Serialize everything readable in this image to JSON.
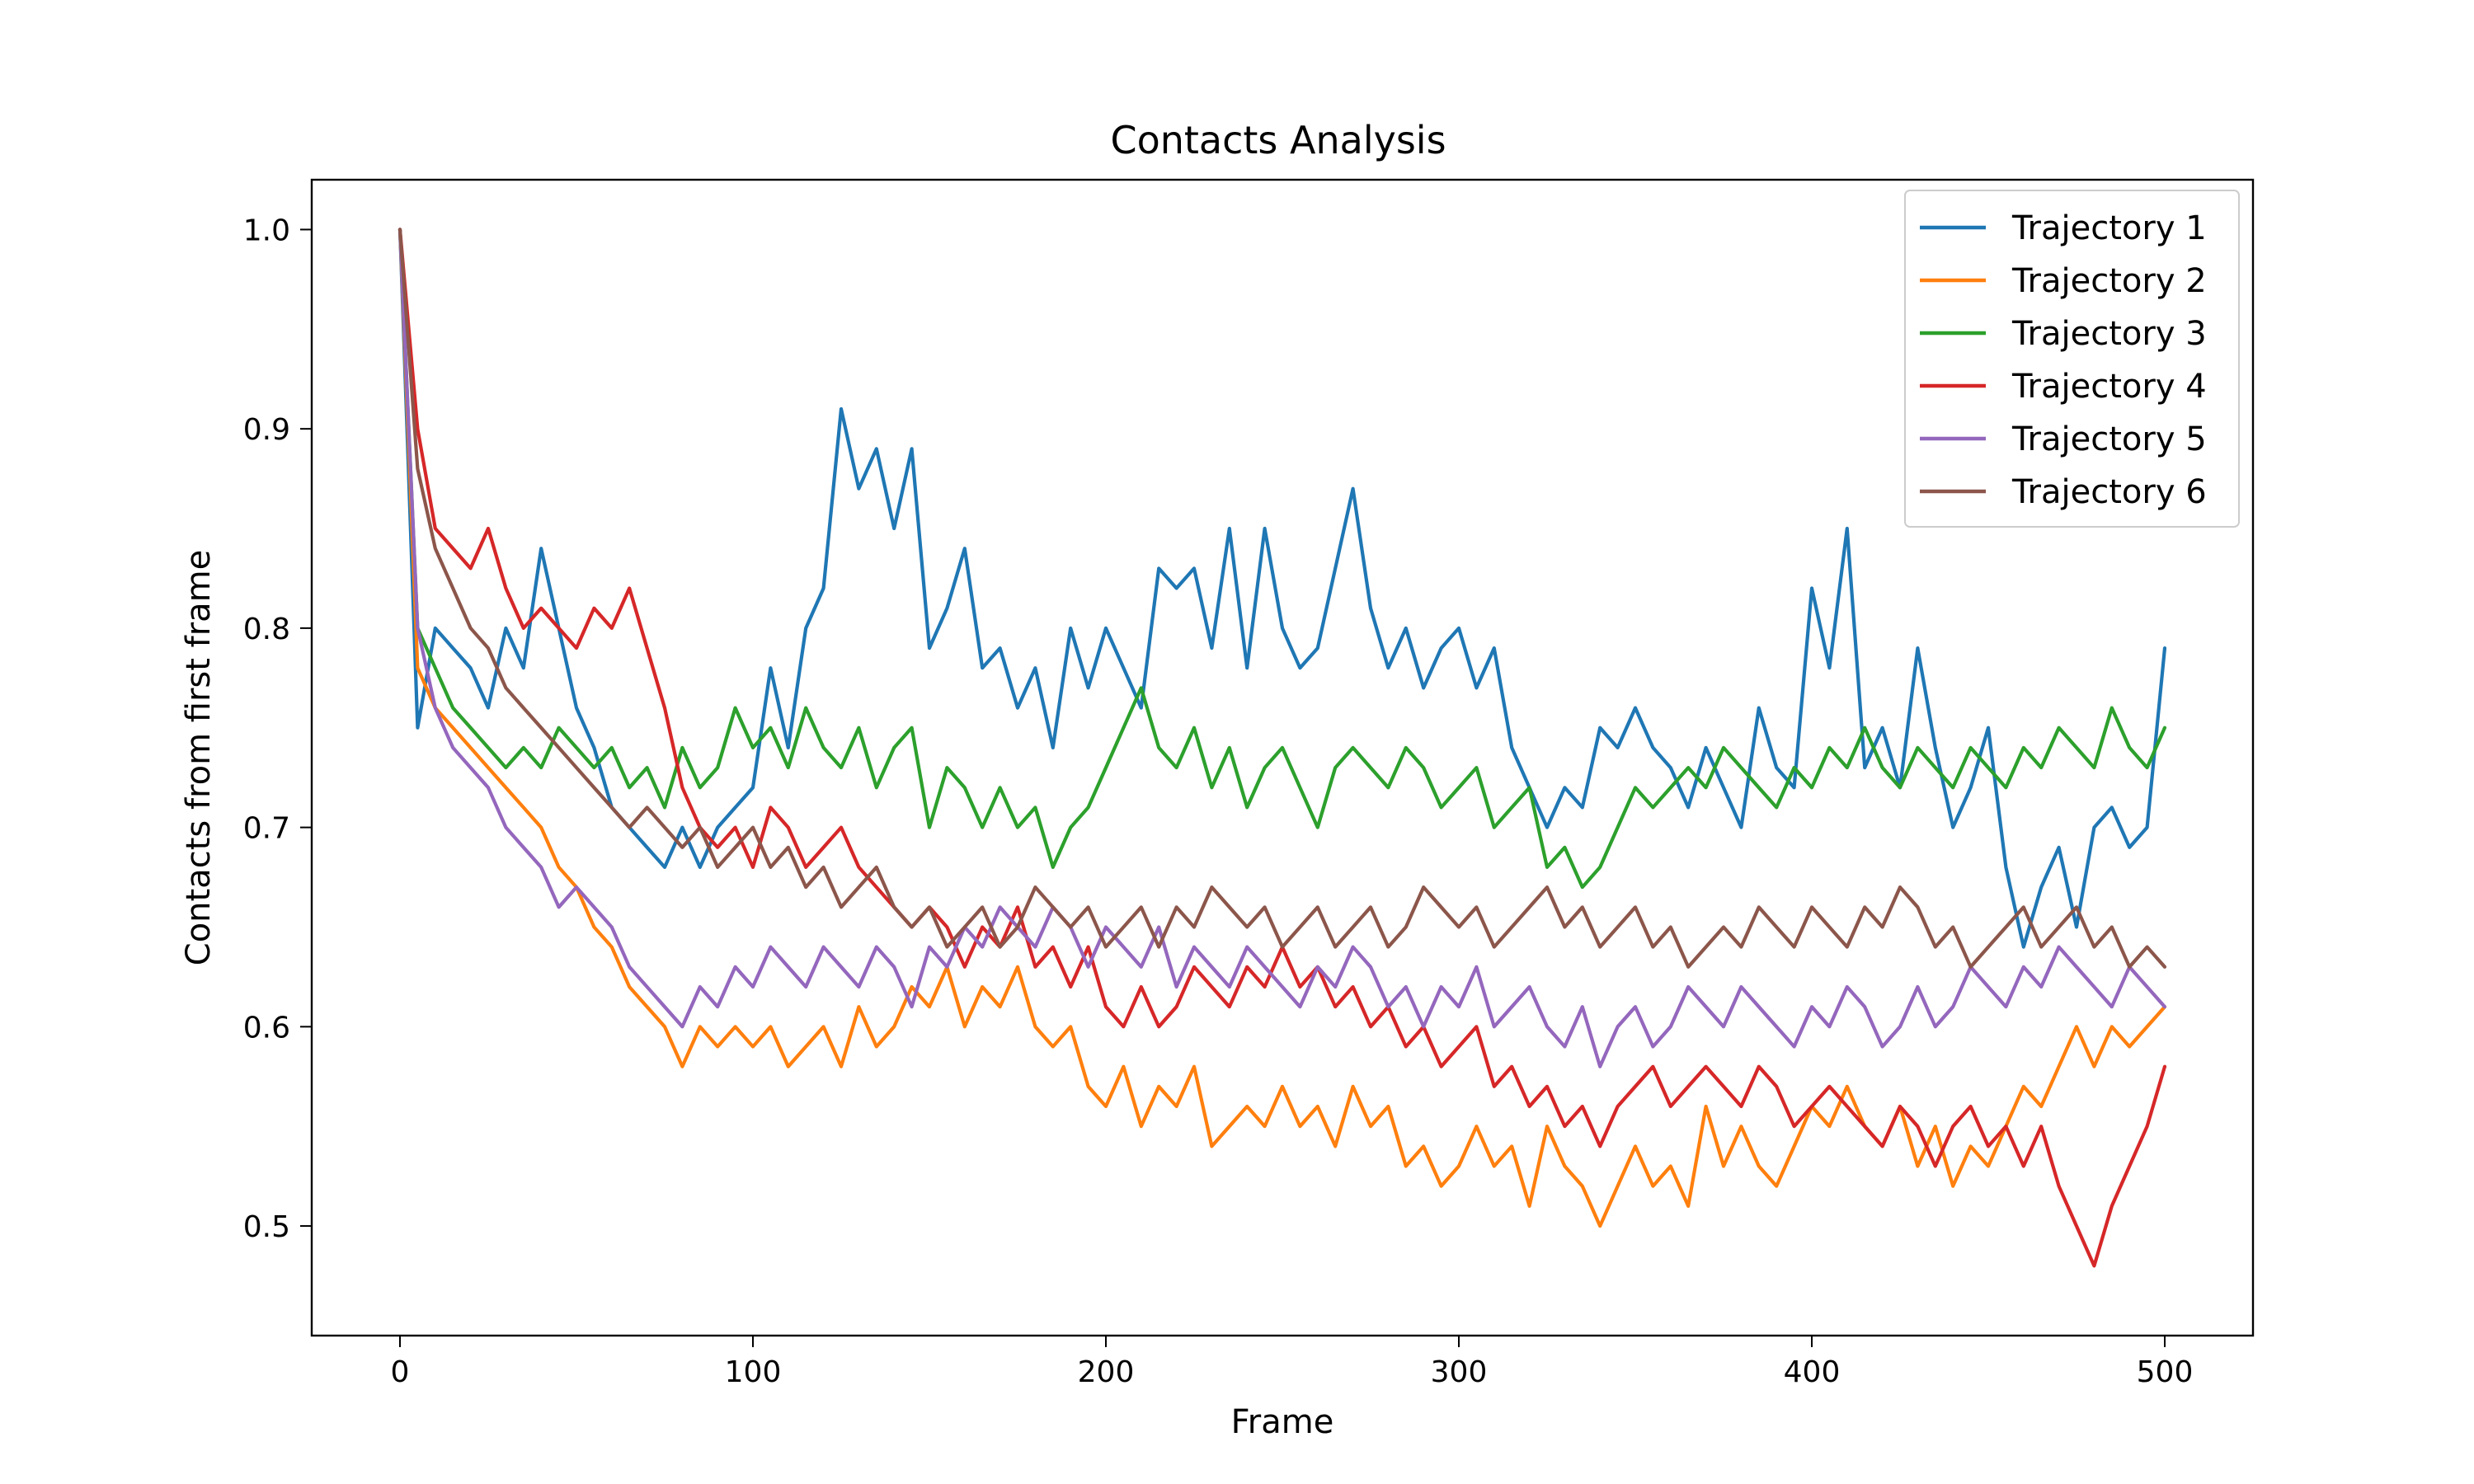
{
  "chart_data": {
    "type": "line",
    "title": "Contacts Analysis",
    "xlabel": "Frame",
    "ylabel": "Contacts from first frame",
    "xlim": [
      -25,
      525
    ],
    "ylim": [
      0.445,
      1.025
    ],
    "xticks": [
      0,
      100,
      200,
      300,
      400,
      500
    ],
    "yticks": [
      0.5,
      0.6,
      0.7,
      0.8,
      0.9,
      1.0
    ],
    "grid": false,
    "legend_position": "top-right",
    "series": [
      {
        "name": "Trajectory 1",
        "color": "#1f77b4",
        "x": [
          0,
          5,
          10,
          15,
          20,
          25,
          30,
          35,
          40,
          45,
          50,
          55,
          60,
          65,
          70,
          75,
          80,
          85,
          90,
          95,
          100,
          105,
          110,
          115,
          120,
          125,
          130,
          135,
          140,
          145,
          150,
          155,
          160,
          165,
          170,
          175,
          180,
          185,
          190,
          195,
          200,
          205,
          210,
          215,
          220,
          225,
          230,
          235,
          240,
          245,
          250,
          255,
          260,
          265,
          270,
          275,
          280,
          285,
          290,
          295,
          300,
          305,
          310,
          315,
          320,
          325,
          330,
          335,
          340,
          345,
          350,
          355,
          360,
          365,
          370,
          375,
          380,
          385,
          390,
          395,
          400,
          405,
          410,
          415,
          420,
          425,
          430,
          435,
          440,
          445,
          450,
          455,
          460,
          465,
          470,
          475,
          480,
          485,
          490,
          495,
          500
        ],
        "y": [
          1.0,
          0.75,
          0.8,
          0.79,
          0.78,
          0.76,
          0.8,
          0.78,
          0.84,
          0.8,
          0.76,
          0.74,
          0.71,
          0.7,
          0.69,
          0.68,
          0.7,
          0.68,
          0.7,
          0.71,
          0.72,
          0.78,
          0.74,
          0.8,
          0.82,
          0.91,
          0.87,
          0.89,
          0.85,
          0.89,
          0.79,
          0.81,
          0.84,
          0.78,
          0.79,
          0.76,
          0.78,
          0.74,
          0.8,
          0.77,
          0.8,
          0.78,
          0.76,
          0.83,
          0.82,
          0.83,
          0.79,
          0.85,
          0.78,
          0.85,
          0.8,
          0.78,
          0.79,
          0.83,
          0.87,
          0.81,
          0.78,
          0.8,
          0.77,
          0.79,
          0.8,
          0.77,
          0.79,
          0.74,
          0.72,
          0.7,
          0.72,
          0.71,
          0.75,
          0.74,
          0.76,
          0.74,
          0.73,
          0.71,
          0.74,
          0.72,
          0.7,
          0.76,
          0.73,
          0.72,
          0.82,
          0.78,
          0.85,
          0.73,
          0.75,
          0.72,
          0.79,
          0.74,
          0.7,
          0.72,
          0.75,
          0.68,
          0.64,
          0.67,
          0.69,
          0.65,
          0.7,
          0.71,
          0.69,
          0.7,
          0.79
        ]
      },
      {
        "name": "Trajectory 2",
        "color": "#ff7f0e",
        "x": [
          0,
          5,
          10,
          15,
          20,
          25,
          30,
          35,
          40,
          45,
          50,
          55,
          60,
          65,
          70,
          75,
          80,
          85,
          90,
          95,
          100,
          105,
          110,
          115,
          120,
          125,
          130,
          135,
          140,
          145,
          150,
          155,
          160,
          165,
          170,
          175,
          180,
          185,
          190,
          195,
          200,
          205,
          210,
          215,
          220,
          225,
          230,
          235,
          240,
          245,
          250,
          255,
          260,
          265,
          270,
          275,
          280,
          285,
          290,
          295,
          300,
          305,
          310,
          315,
          320,
          325,
          330,
          335,
          340,
          345,
          350,
          355,
          360,
          365,
          370,
          375,
          380,
          385,
          390,
          395,
          400,
          405,
          410,
          415,
          420,
          425,
          430,
          435,
          440,
          445,
          450,
          455,
          460,
          465,
          470,
          475,
          480,
          485,
          490,
          495,
          500
        ],
        "y": [
          1.0,
          0.78,
          0.76,
          0.75,
          0.74,
          0.73,
          0.72,
          0.71,
          0.7,
          0.68,
          0.67,
          0.65,
          0.64,
          0.62,
          0.61,
          0.6,
          0.58,
          0.6,
          0.59,
          0.6,
          0.59,
          0.6,
          0.58,
          0.59,
          0.6,
          0.58,
          0.61,
          0.59,
          0.6,
          0.62,
          0.61,
          0.63,
          0.6,
          0.62,
          0.61,
          0.63,
          0.6,
          0.59,
          0.6,
          0.57,
          0.56,
          0.58,
          0.55,
          0.57,
          0.56,
          0.58,
          0.54,
          0.55,
          0.56,
          0.55,
          0.57,
          0.55,
          0.56,
          0.54,
          0.57,
          0.55,
          0.56,
          0.53,
          0.54,
          0.52,
          0.53,
          0.55,
          0.53,
          0.54,
          0.51,
          0.55,
          0.53,
          0.52,
          0.5,
          0.52,
          0.54,
          0.52,
          0.53,
          0.51,
          0.56,
          0.53,
          0.55,
          0.53,
          0.52,
          0.54,
          0.56,
          0.55,
          0.57,
          0.55,
          0.54,
          0.56,
          0.53,
          0.55,
          0.52,
          0.54,
          0.53,
          0.55,
          0.57,
          0.56,
          0.58,
          0.6,
          0.58,
          0.6,
          0.59,
          0.6,
          0.61
        ]
      },
      {
        "name": "Trajectory 3",
        "color": "#2ca02c",
        "x": [
          0,
          5,
          10,
          15,
          20,
          25,
          30,
          35,
          40,
          45,
          50,
          55,
          60,
          65,
          70,
          75,
          80,
          85,
          90,
          95,
          100,
          105,
          110,
          115,
          120,
          125,
          130,
          135,
          140,
          145,
          150,
          155,
          160,
          165,
          170,
          175,
          180,
          185,
          190,
          195,
          200,
          205,
          210,
          215,
          220,
          225,
          230,
          235,
          240,
          245,
          250,
          255,
          260,
          265,
          270,
          275,
          280,
          285,
          290,
          295,
          300,
          305,
          310,
          315,
          320,
          325,
          330,
          335,
          340,
          345,
          350,
          355,
          360,
          365,
          370,
          375,
          380,
          385,
          390,
          395,
          400,
          405,
          410,
          415,
          420,
          425,
          430,
          435,
          440,
          445,
          450,
          455,
          460,
          465,
          470,
          475,
          480,
          485,
          490,
          495,
          500
        ],
        "y": [
          1.0,
          0.8,
          0.78,
          0.76,
          0.75,
          0.74,
          0.73,
          0.74,
          0.73,
          0.75,
          0.74,
          0.73,
          0.74,
          0.72,
          0.73,
          0.71,
          0.74,
          0.72,
          0.73,
          0.76,
          0.74,
          0.75,
          0.73,
          0.76,
          0.74,
          0.73,
          0.75,
          0.72,
          0.74,
          0.75,
          0.7,
          0.73,
          0.72,
          0.7,
          0.72,
          0.7,
          0.71,
          0.68,
          0.7,
          0.71,
          0.73,
          0.75,
          0.77,
          0.74,
          0.73,
          0.75,
          0.72,
          0.74,
          0.71,
          0.73,
          0.74,
          0.72,
          0.7,
          0.73,
          0.74,
          0.73,
          0.72,
          0.74,
          0.73,
          0.71,
          0.72,
          0.73,
          0.7,
          0.71,
          0.72,
          0.68,
          0.69,
          0.67,
          0.68,
          0.7,
          0.72,
          0.71,
          0.72,
          0.73,
          0.72,
          0.74,
          0.73,
          0.72,
          0.71,
          0.73,
          0.72,
          0.74,
          0.73,
          0.75,
          0.73,
          0.72,
          0.74,
          0.73,
          0.72,
          0.74,
          0.73,
          0.72,
          0.74,
          0.73,
          0.75,
          0.74,
          0.73,
          0.76,
          0.74,
          0.73,
          0.75
        ]
      },
      {
        "name": "Trajectory 4",
        "color": "#d62728",
        "x": [
          0,
          5,
          10,
          15,
          20,
          25,
          30,
          35,
          40,
          45,
          50,
          55,
          60,
          65,
          70,
          75,
          80,
          85,
          90,
          95,
          100,
          105,
          110,
          115,
          120,
          125,
          130,
          135,
          140,
          145,
          150,
          155,
          160,
          165,
          170,
          175,
          180,
          185,
          190,
          195,
          200,
          205,
          210,
          215,
          220,
          225,
          230,
          235,
          240,
          245,
          250,
          255,
          260,
          265,
          270,
          275,
          280,
          285,
          290,
          295,
          300,
          305,
          310,
          315,
          320,
          325,
          330,
          335,
          340,
          345,
          350,
          355,
          360,
          365,
          370,
          375,
          380,
          385,
          390,
          395,
          400,
          405,
          410,
          415,
          420,
          425,
          430,
          435,
          440,
          445,
          450,
          455,
          460,
          465,
          470,
          475,
          480,
          485,
          490,
          495,
          500
        ],
        "y": [
          1.0,
          0.9,
          0.85,
          0.84,
          0.83,
          0.85,
          0.82,
          0.8,
          0.81,
          0.8,
          0.79,
          0.81,
          0.8,
          0.82,
          0.79,
          0.76,
          0.72,
          0.7,
          0.69,
          0.7,
          0.68,
          0.71,
          0.7,
          0.68,
          0.69,
          0.7,
          0.68,
          0.67,
          0.66,
          0.65,
          0.66,
          0.65,
          0.63,
          0.65,
          0.64,
          0.66,
          0.63,
          0.64,
          0.62,
          0.64,
          0.61,
          0.6,
          0.62,
          0.6,
          0.61,
          0.63,
          0.62,
          0.61,
          0.63,
          0.62,
          0.64,
          0.62,
          0.63,
          0.61,
          0.62,
          0.6,
          0.61,
          0.59,
          0.6,
          0.58,
          0.59,
          0.6,
          0.57,
          0.58,
          0.56,
          0.57,
          0.55,
          0.56,
          0.54,
          0.56,
          0.57,
          0.58,
          0.56,
          0.57,
          0.58,
          0.57,
          0.56,
          0.58,
          0.57,
          0.55,
          0.56,
          0.57,
          0.56,
          0.55,
          0.54,
          0.56,
          0.55,
          0.53,
          0.55,
          0.56,
          0.54,
          0.55,
          0.53,
          0.55,
          0.52,
          0.5,
          0.48,
          0.51,
          0.53,
          0.55,
          0.58
        ]
      },
      {
        "name": "Trajectory 5",
        "color": "#9467bd",
        "x": [
          0,
          5,
          10,
          15,
          20,
          25,
          30,
          35,
          40,
          45,
          50,
          55,
          60,
          65,
          70,
          75,
          80,
          85,
          90,
          95,
          100,
          105,
          110,
          115,
          120,
          125,
          130,
          135,
          140,
          145,
          150,
          155,
          160,
          165,
          170,
          175,
          180,
          185,
          190,
          195,
          200,
          205,
          210,
          215,
          220,
          225,
          230,
          235,
          240,
          245,
          250,
          255,
          260,
          265,
          270,
          275,
          280,
          285,
          290,
          295,
          300,
          305,
          310,
          315,
          320,
          325,
          330,
          335,
          340,
          345,
          350,
          355,
          360,
          365,
          370,
          375,
          380,
          385,
          390,
          395,
          400,
          405,
          410,
          415,
          420,
          425,
          430,
          435,
          440,
          445,
          450,
          455,
          460,
          465,
          470,
          475,
          480,
          485,
          490,
          495,
          500
        ],
        "y": [
          1.0,
          0.8,
          0.76,
          0.74,
          0.73,
          0.72,
          0.7,
          0.69,
          0.68,
          0.66,
          0.67,
          0.66,
          0.65,
          0.63,
          0.62,
          0.61,
          0.6,
          0.62,
          0.61,
          0.63,
          0.62,
          0.64,
          0.63,
          0.62,
          0.64,
          0.63,
          0.62,
          0.64,
          0.63,
          0.61,
          0.64,
          0.63,
          0.65,
          0.64,
          0.66,
          0.65,
          0.64,
          0.66,
          0.65,
          0.63,
          0.65,
          0.64,
          0.63,
          0.65,
          0.62,
          0.64,
          0.63,
          0.62,
          0.64,
          0.63,
          0.62,
          0.61,
          0.63,
          0.62,
          0.64,
          0.63,
          0.61,
          0.62,
          0.6,
          0.62,
          0.61,
          0.63,
          0.6,
          0.61,
          0.62,
          0.6,
          0.59,
          0.61,
          0.58,
          0.6,
          0.61,
          0.59,
          0.6,
          0.62,
          0.61,
          0.6,
          0.62,
          0.61,
          0.6,
          0.59,
          0.61,
          0.6,
          0.62,
          0.61,
          0.59,
          0.6,
          0.62,
          0.6,
          0.61,
          0.63,
          0.62,
          0.61,
          0.63,
          0.62,
          0.64,
          0.63,
          0.62,
          0.61,
          0.63,
          0.62,
          0.61
        ]
      },
      {
        "name": "Trajectory 6",
        "color": "#8c564b",
        "x": [
          0,
          5,
          10,
          15,
          20,
          25,
          30,
          35,
          40,
          45,
          50,
          55,
          60,
          65,
          70,
          75,
          80,
          85,
          90,
          95,
          100,
          105,
          110,
          115,
          120,
          125,
          130,
          135,
          140,
          145,
          150,
          155,
          160,
          165,
          170,
          175,
          180,
          185,
          190,
          195,
          200,
          205,
          210,
          215,
          220,
          225,
          230,
          235,
          240,
          245,
          250,
          255,
          260,
          265,
          270,
          275,
          280,
          285,
          290,
          295,
          300,
          305,
          310,
          315,
          320,
          325,
          330,
          335,
          340,
          345,
          350,
          355,
          360,
          365,
          370,
          375,
          380,
          385,
          390,
          395,
          400,
          405,
          410,
          415,
          420,
          425,
          430,
          435,
          440,
          445,
          450,
          455,
          460,
          465,
          470,
          475,
          480,
          485,
          490,
          495,
          500
        ],
        "y": [
          1.0,
          0.88,
          0.84,
          0.82,
          0.8,
          0.79,
          0.77,
          0.76,
          0.75,
          0.74,
          0.73,
          0.72,
          0.71,
          0.7,
          0.71,
          0.7,
          0.69,
          0.7,
          0.68,
          0.69,
          0.7,
          0.68,
          0.69,
          0.67,
          0.68,
          0.66,
          0.67,
          0.68,
          0.66,
          0.65,
          0.66,
          0.64,
          0.65,
          0.66,
          0.64,
          0.65,
          0.67,
          0.66,
          0.65,
          0.66,
          0.64,
          0.65,
          0.66,
          0.64,
          0.66,
          0.65,
          0.67,
          0.66,
          0.65,
          0.66,
          0.64,
          0.65,
          0.66,
          0.64,
          0.65,
          0.66,
          0.64,
          0.65,
          0.67,
          0.66,
          0.65,
          0.66,
          0.64,
          0.65,
          0.66,
          0.67,
          0.65,
          0.66,
          0.64,
          0.65,
          0.66,
          0.64,
          0.65,
          0.63,
          0.64,
          0.65,
          0.64,
          0.66,
          0.65,
          0.64,
          0.66,
          0.65,
          0.64,
          0.66,
          0.65,
          0.67,
          0.66,
          0.64,
          0.65,
          0.63,
          0.64,
          0.65,
          0.66,
          0.64,
          0.65,
          0.66,
          0.64,
          0.65,
          0.63,
          0.64,
          0.63
        ]
      }
    ]
  }
}
